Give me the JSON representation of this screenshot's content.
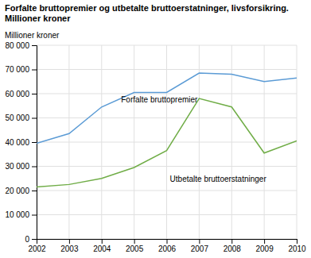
{
  "chart_data": {
    "type": "line",
    "title": "Forfalte bruttopremier og utbetalte bruttoerstatninger, livsforsikring.",
    "subtitle": "Millioner kroner",
    "ylabel": "Millioner kroner",
    "x": [
      2002,
      2003,
      2004,
      2005,
      2006,
      2007,
      2008,
      2009,
      2010
    ],
    "series": [
      {
        "color": "#5b9bd5",
        "values": [
          39500,
          43500,
          54500,
          60500,
          60500,
          68500,
          68000,
          65000,
          66500
        ]
      },
      {
        "color": "#70ad47",
        "values": [
          21500,
          22500,
          25000,
          29500,
          36500,
          58000,
          54500,
          35500,
          40500
        ]
      }
    ],
    "annotations": [
      {
        "text": "Forfalte bruttopremier",
        "x": 2004.6,
        "y": 56500
      },
      {
        "text": "Utbetalte bruttoerstatninger",
        "x": 2006.1,
        "y": 23500
      }
    ],
    "xlim": [
      2002,
      2010
    ],
    "xticks": [
      2002,
      2003,
      2004,
      2005,
      2006,
      2007,
      2008,
      2009,
      2010
    ],
    "ylim": [
      0,
      80000
    ],
    "yticks": [
      0,
      {
        "value": 10000,
        "label": "10 000"
      },
      {
        "value": 20000,
        "label": "20 000"
      },
      {
        "value": 30000,
        "label": "30 000"
      },
      {
        "value": 40000,
        "label": "40 000"
      },
      {
        "value": 50000,
        "label": "50 000"
      },
      {
        "value": 60000,
        "label": "60 000"
      },
      {
        "value": 70000,
        "label": "70 000"
      },
      {
        "value": 80000,
        "label": "80 000"
      }
    ],
    "grid": true
  }
}
